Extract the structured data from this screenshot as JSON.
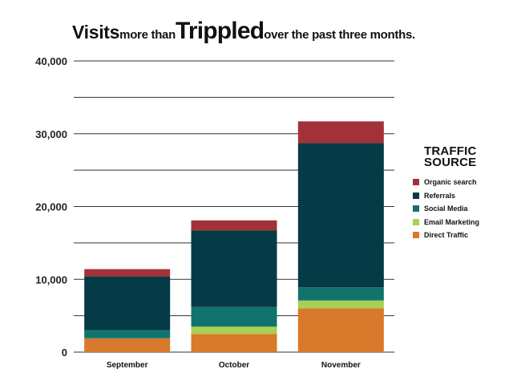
{
  "title": {
    "part1": "Visits",
    "part2": "more than",
    "part3": "Trippled",
    "part4": "over the past three months."
  },
  "legend_title_line1": "TRAFFIC",
  "legend_title_line2": "SOURCE",
  "chart_data": {
    "type": "bar",
    "stacked": true,
    "categories": [
      "September",
      "October",
      "November"
    ],
    "series": [
      {
        "name": "Direct Traffic",
        "color": "#d8792b",
        "values": [
          1900,
          2500,
          6000
        ]
      },
      {
        "name": "Email Marketing",
        "color": "#a9cf54",
        "values": [
          0,
          1000,
          1100
        ]
      },
      {
        "name": "Social Media",
        "color": "#10746d",
        "values": [
          1100,
          2700,
          1800
        ]
      },
      {
        "name": "Referrals",
        "color": "#053a47",
        "values": [
          7400,
          10500,
          19800
        ]
      },
      {
        "name": "Organic search",
        "color": "#a33238",
        "values": [
          1000,
          1400,
          3000
        ]
      }
    ],
    "legend_order": [
      "Organic search",
      "Referrals",
      "Social Media",
      "Email Marketing",
      "Direct Traffic"
    ],
    "ylim": [
      0,
      40000
    ],
    "yticks": [
      0,
      10000,
      20000,
      30000,
      40000
    ],
    "ytick_labels": [
      "0",
      "10,000",
      "20,000",
      "30,000",
      "40,000"
    ],
    "gridlines": [
      0,
      5000,
      10000,
      15000,
      20000,
      25000,
      30000,
      35000,
      40000
    ],
    "grid": true,
    "legend_position": "right"
  }
}
